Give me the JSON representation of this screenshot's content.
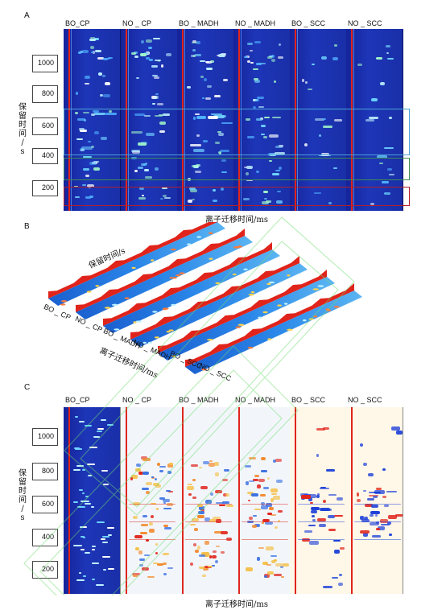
{
  "figure": {
    "panels": [
      {
        "letter": "A",
        "column_labels": [
          "BO_CP",
          "NO _ CP",
          "BO _ MADH",
          "NO _ MADH",
          "BO _ SCC",
          "NO _ SCC"
        ],
        "y_axis_label_chars": [
          "保",
          "留",
          "时",
          "间",
          "/",
          "s"
        ],
        "y_ticks": [
          "1000",
          "800",
          "600",
          "400",
          "200"
        ],
        "x_axis_label": "离子迁移时间/ms",
        "highlight_colors": {
          "top": "#4aa3d6",
          "middle": "#3d8c55",
          "bottom": "#b21f2a"
        }
      },
      {
        "letter": "B",
        "y_axis_label": "保留时间/s",
        "sample_labels": [
          "BO _ CP",
          "NO _ CP",
          "BO _ MADH",
          "NO _ MADH",
          "BO _ SCC",
          "NO _ SCC"
        ],
        "x_axis_label": "离子迁移时间/ms"
      },
      {
        "letter": "C",
        "column_labels": [
          "BO_CP",
          "NO _ CP",
          "BO _ MADH",
          "NO _ MADH",
          "BO _ SCC",
          "NO _ SCC"
        ],
        "y_axis_label_chars": [
          "保",
          "留",
          "时",
          "间",
          "/",
          "s"
        ],
        "y_ticks": [
          "1000",
          "800",
          "600",
          "400",
          "200"
        ],
        "x_axis_label": "离子迁移时间/ms"
      }
    ],
    "colors": {
      "background_blue": "#1a2fa8",
      "peak_red": "#e0241b",
      "diff_bg": "#f2f6fb",
      "watermark": "#6fdc6f"
    }
  }
}
